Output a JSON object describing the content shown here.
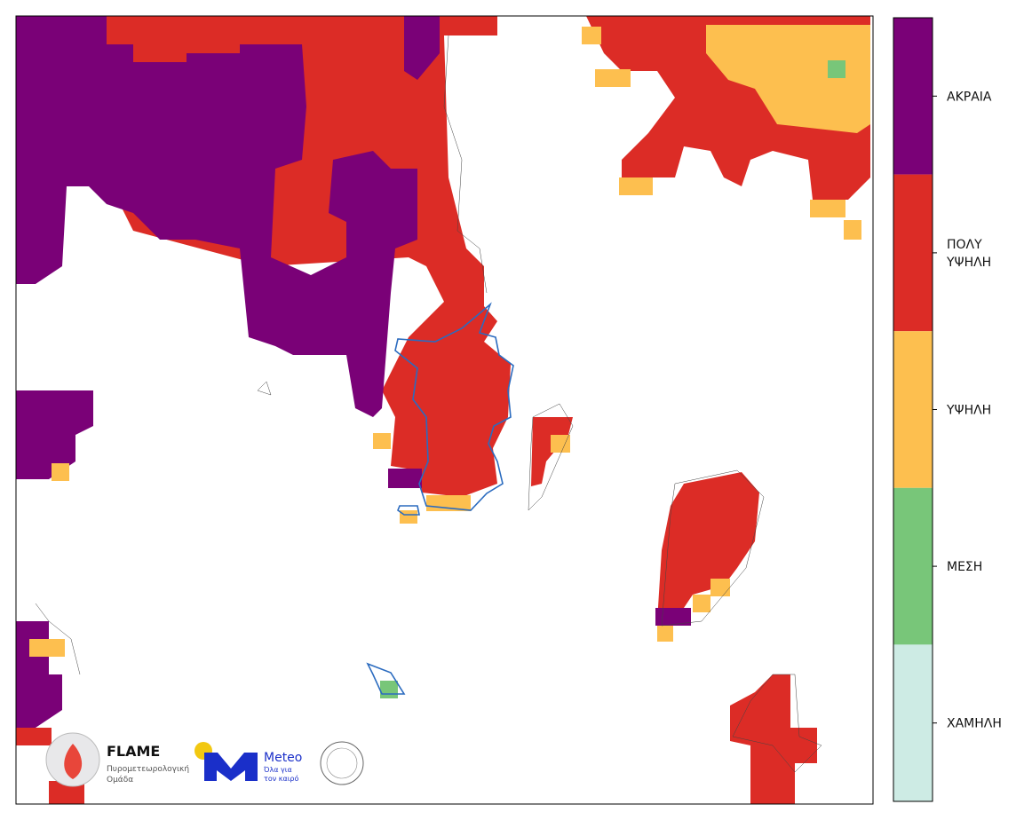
{
  "legend": {
    "levels": [
      {
        "label": "ΑΚΡΑΙΑ",
        "color": "#7a0177"
      },
      {
        "label": "ΠΟΛΥ\nΥΨΗΛΗ",
        "color": "#dc2c26"
      },
      {
        "label": "ΥΨΗΛΗ",
        "color": "#fdbf4f"
      },
      {
        "label": "ΜΕΣΗ",
        "color": "#78c679"
      },
      {
        "label": "ΧΑΜΗΛΗ",
        "color": "#cdebe4"
      }
    ]
  },
  "logos": {
    "flame": {
      "name": "FLAME",
      "line1": "Πυρομετεωρολογική",
      "line2": "Ομάδα"
    },
    "meteo": {
      "name": "Meteo",
      "line1": "Όλα για",
      "line2": "τον καιρό"
    }
  }
}
